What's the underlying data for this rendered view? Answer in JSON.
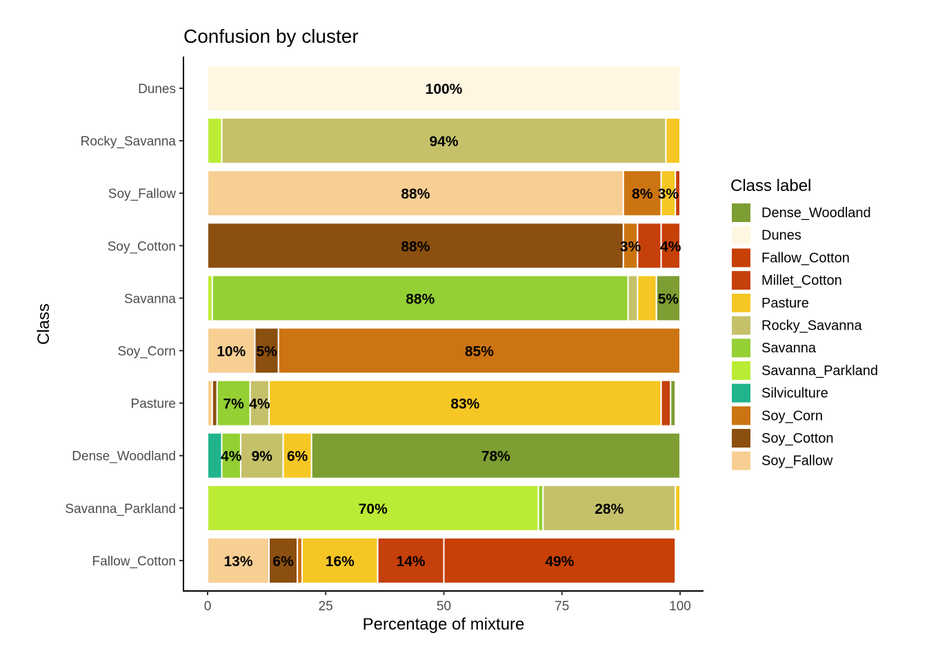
{
  "chart_data": {
    "type": "bar",
    "orientation": "horizontal",
    "stacked": true,
    "title": "Confusion by cluster",
    "xlabel": "Percentage of mixture",
    "ylabel": "Class",
    "xlim": [
      0,
      100
    ],
    "xticks": [
      "0",
      "25",
      "50",
      "75",
      "100"
    ],
    "grid": false,
    "legend": {
      "title": "Class label",
      "placement": "right"
    },
    "categories": [
      "Dunes",
      "Rocky_Savanna",
      "Soy_Fallow",
      "Soy_Cotton",
      "Savanna",
      "Soy_Corn",
      "Pasture",
      "Dense_Woodland",
      "Savanna_Parkland",
      "Fallow_Cotton"
    ],
    "classes": [
      {
        "name": "Dense_Woodland",
        "color": "#7d9e33"
      },
      {
        "name": "Dunes",
        "color": "#fff7e1"
      },
      {
        "name": "Fallow_Cotton",
        "color": "#c74006"
      },
      {
        "name": "Millet_Cotton",
        "color": "#c5400a"
      },
      {
        "name": "Pasture",
        "color": "#f6c724"
      },
      {
        "name": "Rocky_Savanna",
        "color": "#c5c16a"
      },
      {
        "name": "Savanna",
        "color": "#94d034"
      },
      {
        "name": "Savanna_Parkland",
        "color": "#bbec35"
      },
      {
        "name": "Silviculture",
        "color": "#21b48c"
      },
      {
        "name": "Soy_Corn",
        "color": "#cc7411"
      },
      {
        "name": "Soy_Cotton",
        "color": "#8b4f0f"
      },
      {
        "name": "Soy_Fallow",
        "color": "#f7cf93"
      }
    ],
    "bars": [
      {
        "category": "Dunes",
        "segments": [
          {
            "class": "Dunes",
            "value": 100,
            "label": "100%"
          }
        ]
      },
      {
        "category": "Rocky_Savanna",
        "segments": [
          {
            "class": "Savanna_Parkland",
            "value": 3
          },
          {
            "class": "Rocky_Savanna",
            "value": 94,
            "label": "94%"
          },
          {
            "class": "Pasture",
            "value": 3
          }
        ]
      },
      {
        "category": "Soy_Fallow",
        "segments": [
          {
            "class": "Soy_Fallow",
            "value": 88,
            "label": "88%"
          },
          {
            "class": "Soy_Corn",
            "value": 8,
            "label": "8%"
          },
          {
            "class": "Pasture",
            "value": 3,
            "label": "3%"
          },
          {
            "class": "Fallow_Cotton",
            "value": 1
          }
        ]
      },
      {
        "category": "Soy_Cotton",
        "segments": [
          {
            "class": "Soy_Cotton",
            "value": 88,
            "label": "88%"
          },
          {
            "class": "Soy_Corn",
            "value": 3,
            "label": "3%"
          },
          {
            "class": "Millet_Cotton",
            "value": 5
          },
          {
            "class": "Fallow_Cotton",
            "value": 4,
            "label": "4%"
          }
        ]
      },
      {
        "category": "Savanna",
        "segments": [
          {
            "class": "Savanna_Parkland",
            "value": 1
          },
          {
            "class": "Savanna",
            "value": 88,
            "label": "88%"
          },
          {
            "class": "Rocky_Savanna",
            "value": 2
          },
          {
            "class": "Pasture",
            "value": 4
          },
          {
            "class": "Dense_Woodland",
            "value": 5,
            "label": "5%"
          }
        ]
      },
      {
        "category": "Soy_Corn",
        "segments": [
          {
            "class": "Soy_Fallow",
            "value": 10,
            "label": "10%"
          },
          {
            "class": "Soy_Cotton",
            "value": 5,
            "label": "5%"
          },
          {
            "class": "Soy_Corn",
            "value": 85,
            "label": "85%"
          }
        ]
      },
      {
        "category": "Pasture",
        "segments": [
          {
            "class": "Soy_Fallow",
            "value": 1
          },
          {
            "class": "Soy_Cotton",
            "value": 1
          },
          {
            "class": "Savanna",
            "value": 7,
            "label": "7%"
          },
          {
            "class": "Rocky_Savanna",
            "value": 4,
            "label": "4%"
          },
          {
            "class": "Pasture",
            "value": 83,
            "label": "83%"
          },
          {
            "class": "Fallow_Cotton",
            "value": 2
          },
          {
            "class": "Dense_Woodland",
            "value": 1
          }
        ]
      },
      {
        "category": "Dense_Woodland",
        "segments": [
          {
            "class": "Silviculture",
            "value": 3
          },
          {
            "class": "Savanna",
            "value": 4,
            "label": "4%"
          },
          {
            "class": "Rocky_Savanna",
            "value": 9,
            "label": "9%"
          },
          {
            "class": "Pasture",
            "value": 6,
            "label": "6%"
          },
          {
            "class": "Dense_Woodland",
            "value": 78,
            "label": "78%"
          }
        ]
      },
      {
        "category": "Savanna_Parkland",
        "segments": [
          {
            "class": "Savanna_Parkland",
            "value": 70,
            "label": "70%"
          },
          {
            "class": "Savanna",
            "value": 1
          },
          {
            "class": "Rocky_Savanna",
            "value": 28,
            "label": "28%"
          },
          {
            "class": "Pasture",
            "value": 1
          }
        ]
      },
      {
        "category": "Fallow_Cotton",
        "segments": [
          {
            "class": "Soy_Fallow",
            "value": 13,
            "label": "13%"
          },
          {
            "class": "Soy_Cotton",
            "value": 6,
            "label": "6%"
          },
          {
            "class": "Soy_Corn",
            "value": 1
          },
          {
            "class": "Pasture",
            "value": 16,
            "label": "16%"
          },
          {
            "class": "Millet_Cotton",
            "value": 14,
            "label": "14%"
          },
          {
            "class": "Fallow_Cotton",
            "value": 49,
            "label": "49%"
          }
        ]
      }
    ]
  }
}
